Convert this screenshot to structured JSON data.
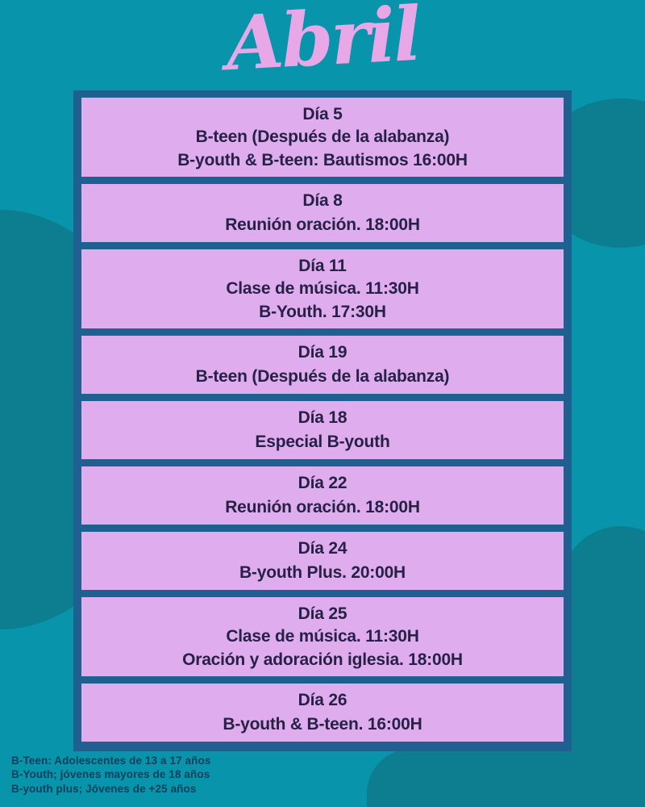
{
  "header": {
    "title": "Abril"
  },
  "schedule": {
    "cards": [
      {
        "day": "Día 5",
        "lines": [
          "B-teen (Después de la alabanza)",
          "B-youth & B-teen: Bautismos 16:00H"
        ]
      },
      {
        "day": "Día 8",
        "lines": [
          "Reunión oración. 18:00H"
        ]
      },
      {
        "day": "Día 11",
        "lines": [
          "Clase de música. 11:30H",
          "B-Youth. 17:30H"
        ]
      },
      {
        "day": "Día 19",
        "lines": [
          "B-teen (Después de la alabanza)"
        ]
      },
      {
        "day": "Día 18",
        "lines": [
          "Especial B-youth"
        ]
      },
      {
        "day": "Día 22",
        "lines": [
          "Reunión oración. 18:00H"
        ]
      },
      {
        "day": "Día 24",
        "lines": [
          "B-youth Plus. 20:00H"
        ]
      },
      {
        "day": "Día 25",
        "lines": [
          "Clase de música. 11:30H",
          "Oración y adoración iglesia. 18:00H"
        ]
      },
      {
        "day": "Día 26",
        "lines": [
          "B-youth & B-teen. 16:00H"
        ]
      }
    ]
  },
  "legend": {
    "lines": [
      "B-Teen: Adolescentes de 13 a 17 años",
      "B-Youth; jóvenes mayores de 18 años",
      "B-youth plus; Jóvenes de +25 años"
    ]
  },
  "colors": {
    "background_teal": "#0894aa",
    "blob_teal_dark": "#0d7e8f",
    "board_frame_blue": "#1e608f",
    "card_lavender": "#dfadee",
    "title_pink": "#e8a8e8",
    "card_text_navy": "#272147",
    "legend_text_navy": "#0d3f5c"
  }
}
